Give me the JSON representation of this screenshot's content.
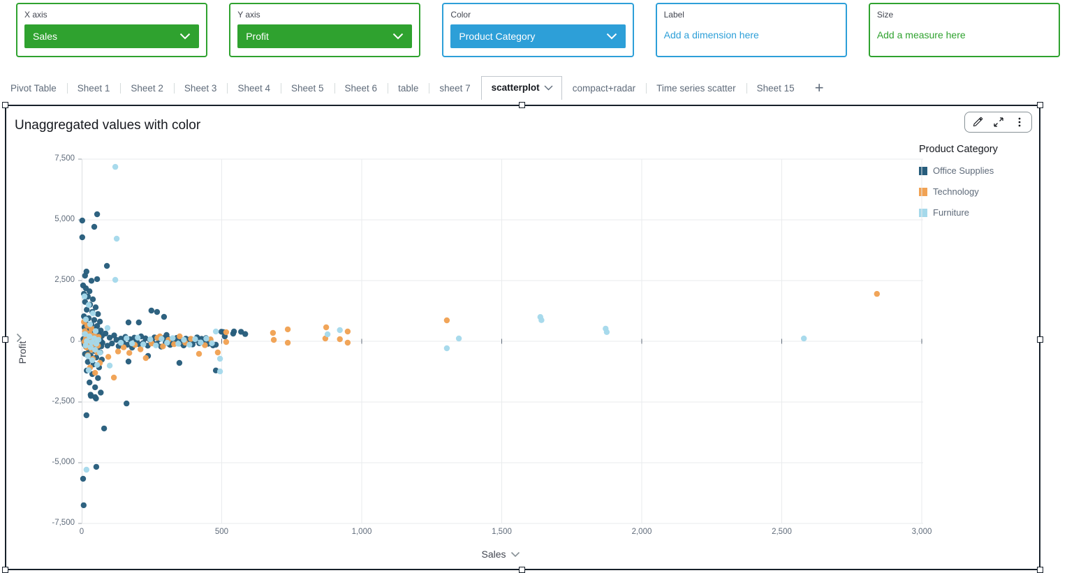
{
  "colors": {
    "measure_green": "#2fa22f",
    "dimension_blue": "#2d9fd8",
    "selection_border": "#17202a",
    "gridline": "#e9ebed",
    "axis_line": "#dcdfe2",
    "tick_text": "#5f6b7a"
  },
  "field_wells": [
    {
      "label": "X axis",
      "type": "dropdown",
      "value": "Sales",
      "color": "green"
    },
    {
      "label": "Y axis",
      "type": "dropdown",
      "value": "Profit",
      "color": "green"
    },
    {
      "label": "Color",
      "type": "dropdown",
      "value": "Product Category",
      "color": "blue"
    },
    {
      "label": "Label",
      "type": "placeholder",
      "value": "Add a dimension here",
      "color": "blue"
    },
    {
      "label": "Size",
      "type": "placeholder",
      "value": "Add a measure here",
      "color": "green"
    }
  ],
  "sheet_tabs": {
    "tabs": [
      {
        "label": "Pivot Table",
        "active": false
      },
      {
        "label": "Sheet 1",
        "active": false
      },
      {
        "label": "Sheet 2",
        "active": false
      },
      {
        "label": "Sheet 3",
        "active": false
      },
      {
        "label": "Sheet 4",
        "active": false
      },
      {
        "label": "Sheet 5",
        "active": false
      },
      {
        "label": "Sheet 6",
        "active": false
      },
      {
        "label": "table",
        "active": false
      },
      {
        "label": "sheet 7",
        "active": false
      },
      {
        "label": "scatterplot",
        "active": true
      },
      {
        "label": "compact+radar",
        "active": false
      },
      {
        "label": "Time series scatter",
        "active": false
      },
      {
        "label": "Sheet 15",
        "active": false
      }
    ],
    "add_label": "+"
  },
  "visual": {
    "title": "Unaggregated values with color",
    "toolbar_icons": [
      "pencil-icon",
      "maximize-icon",
      "kebab-menu-icon"
    ],
    "legend": {
      "title": "Product Category",
      "items": [
        {
          "label": "Office Supplies",
          "color": "#275d7c"
        },
        {
          "label": "Technology",
          "color": "#f1a254"
        },
        {
          "label": "Furniture",
          "color": "#a5d9eb"
        }
      ]
    }
  },
  "chart_data": {
    "type": "scatter",
    "title": "Unaggregated values with color",
    "xlabel": "Sales",
    "ylabel": "Profit",
    "xlim": [
      0,
      3005
    ],
    "ylim": [
      -7500,
      7500
    ],
    "grid": true,
    "legend_position": "right",
    "x_ticks": [
      {
        "v": 0,
        "label": "0"
      },
      {
        "v": 500,
        "label": "500"
      },
      {
        "v": 1000,
        "label": "1,000"
      },
      {
        "v": 1500,
        "label": "1,500"
      },
      {
        "v": 2000,
        "label": "2,000"
      },
      {
        "v": 2500,
        "label": "2,500"
      },
      {
        "v": 3000,
        "label": "3,000"
      }
    ],
    "y_ticks": [
      {
        "v": 7500,
        "label": "7,500"
      },
      {
        "v": 5000,
        "label": "5,000"
      },
      {
        "v": 2500,
        "label": "2,500"
      },
      {
        "v": 0,
        "label": "0"
      },
      {
        "v": -2500,
        "label": "-2,500"
      },
      {
        "v": -5000,
        "label": "-5,000"
      },
      {
        "v": -7500,
        "label": "-7,500"
      }
    ],
    "series": [
      {
        "name": "Office Supplies",
        "color": "#275d7c",
        "points": [
          [
            5,
            2300
          ],
          [
            15,
            2180
          ],
          [
            28,
            2060
          ],
          [
            8,
            1950
          ],
          [
            22,
            1840
          ],
          [
            40,
            1730
          ],
          [
            12,
            1620
          ],
          [
            30,
            1510
          ],
          [
            50,
            1400
          ],
          [
            18,
            1300
          ],
          [
            38,
            1210
          ],
          [
            58,
            1120
          ],
          [
            8,
            1030
          ],
          [
            25,
            950
          ],
          [
            45,
            880
          ],
          [
            65,
            810
          ],
          [
            15,
            745
          ],
          [
            35,
            685
          ],
          [
            55,
            630
          ],
          [
            10,
            578
          ],
          [
            28,
            530
          ],
          [
            48,
            485
          ],
          [
            68,
            443
          ],
          [
            20,
            404
          ],
          [
            40,
            368
          ],
          [
            60,
            335
          ],
          [
            12,
            304
          ],
          [
            32,
            275
          ],
          [
            52,
            248
          ],
          [
            72,
            223
          ],
          [
            16,
            200
          ],
          [
            36,
            179
          ],
          [
            56,
            159
          ],
          [
            24,
            141
          ],
          [
            44,
            124
          ],
          [
            64,
            108
          ],
          [
            6,
            93
          ],
          [
            26,
            79
          ],
          [
            46,
            66
          ],
          [
            66,
            54
          ],
          [
            18,
            43
          ],
          [
            38,
            33
          ],
          [
            58,
            24
          ],
          [
            28,
            15
          ],
          [
            48,
            8
          ],
          [
            9,
            2
          ],
          [
            30,
            -4
          ],
          [
            50,
            -11
          ],
          [
            70,
            -19
          ],
          [
            14,
            -28
          ],
          [
            34,
            -38
          ],
          [
            54,
            -49
          ],
          [
            74,
            -62
          ],
          [
            20,
            -76
          ],
          [
            40,
            -92
          ],
          [
            60,
            -110
          ],
          [
            10,
            -130
          ],
          [
            30,
            -152
          ],
          [
            50,
            -177
          ],
          [
            70,
            -205
          ],
          [
            16,
            -236
          ],
          [
            36,
            -271
          ],
          [
            56,
            -310
          ],
          [
            26,
            -354
          ],
          [
            46,
            -403
          ],
          [
            66,
            -458
          ],
          [
            12,
            -520
          ],
          [
            32,
            -589
          ],
          [
            52,
            -666
          ],
          [
            72,
            -752
          ],
          [
            22,
            -848
          ],
          [
            42,
            -955
          ],
          [
            62,
            -1074
          ],
          [
            18,
            -1206
          ],
          [
            38,
            -1352
          ],
          [
            58,
            -1514
          ],
          [
            28,
            -1694
          ],
          [
            48,
            -1893
          ],
          [
            68,
            -2113
          ],
          [
            33,
            -2250
          ],
          [
            51,
            -2356
          ],
          [
            85,
            320
          ],
          [
            92,
            -180
          ],
          [
            100,
            150
          ],
          [
            108,
            -90
          ],
          [
            116,
            240
          ],
          [
            124,
            60
          ],
          [
            132,
            -200
          ],
          [
            140,
            110
          ],
          [
            148,
            -45
          ],
          [
            156,
            180
          ],
          [
            164,
            -140
          ],
          [
            172,
            90
          ],
          [
            180,
            -260
          ],
          [
            188,
            150
          ],
          [
            196,
            30
          ],
          [
            204,
            -120
          ],
          [
            212,
            200
          ],
          [
            220,
            -70
          ],
          [
            228,
            120
          ],
          [
            236,
            -180
          ],
          [
            244,
            60
          ],
          [
            252,
            -40
          ],
          [
            260,
            160
          ],
          [
            268,
            -110
          ],
          [
            276,
            80
          ],
          [
            284,
            -220
          ],
          [
            292,
            130
          ],
          [
            300,
            -60
          ],
          [
            308,
            100
          ],
          [
            316,
            -150
          ],
          [
            324,
            70
          ],
          [
            332,
            -35
          ],
          [
            340,
            140
          ],
          [
            348,
            -95
          ],
          [
            356,
            55
          ],
          [
            364,
            -170
          ],
          [
            372,
            110
          ],
          [
            380,
            -50
          ],
          [
            388,
            90
          ],
          [
            396,
            -130
          ],
          [
            404,
            45
          ],
          [
            412,
            160
          ],
          [
            420,
            -80
          ],
          [
            428,
            100
          ],
          [
            436,
            -40
          ],
          [
            444,
            130
          ],
          [
            452,
            -100
          ],
          [
            460,
            60
          ],
          [
            167,
            776
          ],
          [
            204,
            776
          ],
          [
            249,
            1264
          ],
          [
            269,
            1207
          ],
          [
            294,
            1006
          ],
          [
            237,
            -603
          ],
          [
            167,
            -833
          ],
          [
            349,
            -891
          ],
          [
            479,
            -1200
          ],
          [
            469,
            -170
          ],
          [
            479,
            -140
          ],
          [
            499,
            395
          ],
          [
            506,
            380
          ],
          [
            511,
            201
          ],
          [
            541,
            316
          ],
          [
            544,
            402
          ],
          [
            569,
            390
          ],
          [
            584,
            300
          ],
          [
            303,
            260
          ],
          [
            312,
            -110
          ],
          [
            55,
            5230
          ],
          [
            2,
            4970
          ],
          [
            45,
            4713
          ],
          [
            2,
            4282
          ],
          [
            90,
            3103
          ],
          [
            17,
            2870
          ],
          [
            12,
            2700
          ],
          [
            55,
            2560
          ],
          [
            35,
            2490
          ],
          [
            160,
            -2560
          ],
          [
            17,
            -3045
          ],
          [
            80,
            -3590
          ],
          [
            52,
            -5170
          ],
          [
            5,
            -5660
          ],
          [
            7,
            -6750
          ],
          [
            32,
            -2200
          ],
          [
            48,
            -2300
          ]
        ]
      },
      {
        "name": "Technology",
        "color": "#f1a254",
        "points": [
          [
            8,
            800
          ],
          [
            20,
            640
          ],
          [
            35,
            520
          ],
          [
            12,
            420
          ],
          [
            28,
            330
          ],
          [
            45,
            250
          ],
          [
            60,
            180
          ],
          [
            15,
            120
          ],
          [
            32,
            70
          ],
          [
            50,
            25
          ],
          [
            10,
            -15
          ],
          [
            25,
            -60
          ],
          [
            42,
            -115
          ],
          [
            58,
            -180
          ],
          [
            18,
            -255
          ],
          [
            36,
            -345
          ],
          [
            55,
            -450
          ],
          [
            22,
            -575
          ],
          [
            40,
            -720
          ],
          [
            65,
            -890
          ],
          [
            30,
            -1080
          ],
          [
            48,
            -1300
          ],
          [
            115,
            -1494
          ],
          [
            95,
            -640
          ],
          [
            130,
            -420
          ],
          [
            150,
            -250
          ],
          [
            170,
            -480
          ],
          [
            190,
            -150
          ],
          [
            210,
            -330
          ],
          [
            229,
            -690
          ],
          [
            250,
            -90
          ],
          [
            270,
            140
          ],
          [
            279,
            201
          ],
          [
            290,
            -210
          ],
          [
            310,
            60
          ],
          [
            330,
            -120
          ],
          [
            350,
            200
          ],
          [
            370,
            -60
          ],
          [
            390,
            100
          ],
          [
            419,
            -517
          ],
          [
            440,
            -160
          ],
          [
            460,
            80
          ],
          [
            486,
            -460
          ],
          [
            516,
            374
          ],
          [
            516,
            -30
          ],
          [
            683,
            345
          ],
          [
            686,
            57
          ],
          [
            736,
            490
          ],
          [
            736,
            -60
          ],
          [
            873,
            575
          ],
          [
            870,
            115
          ],
          [
            922,
            86
          ],
          [
            950,
            402
          ],
          [
            950,
            -57
          ],
          [
            1304,
            862
          ],
          [
            2840,
            1950
          ]
        ]
      },
      {
        "name": "Furniture",
        "color": "#a5d9eb",
        "points": [
          [
            120,
            7180
          ],
          [
            125,
            4224
          ],
          [
            120,
            2530
          ],
          [
            10,
            1850
          ],
          [
            25,
            1500
          ],
          [
            40,
            1150
          ],
          [
            15,
            900
          ],
          [
            30,
            700
          ],
          [
            92,
            546
          ],
          [
            50,
            420
          ],
          [
            12,
            300
          ],
          [
            28,
            200
          ],
          [
            45,
            120
          ],
          [
            60,
            60
          ],
          [
            18,
            10
          ],
          [
            35,
            -40
          ],
          [
            52,
            -100
          ],
          [
            14,
            -170
          ],
          [
            32,
            -250
          ],
          [
            48,
            -350
          ],
          [
            65,
            -470
          ],
          [
            22,
            -610
          ],
          [
            38,
            -780
          ],
          [
            55,
            -970
          ],
          [
            25,
            -1190
          ],
          [
            100,
            -1000
          ],
          [
            140,
            -60
          ],
          [
            160,
            120
          ],
          [
            180,
            -90
          ],
          [
            200,
            150
          ],
          [
            220,
            -130
          ],
          [
            245,
            80
          ],
          [
            265,
            -170
          ],
          [
            285,
            100
          ],
          [
            305,
            -60
          ],
          [
            325,
            130
          ],
          [
            345,
            -100
          ],
          [
            365,
            60
          ],
          [
            385,
            -140
          ],
          [
            405,
            90
          ],
          [
            425,
            -50
          ],
          [
            445,
            110
          ],
          [
            465,
            -80
          ],
          [
            479,
            402
          ],
          [
            494,
            -718
          ],
          [
            494,
            -1240
          ],
          [
            17,
            -5287
          ],
          [
            878,
            287
          ],
          [
            922,
            460
          ],
          [
            1347,
            115
          ],
          [
            1304,
            -287
          ],
          [
            1638,
            1000
          ],
          [
            1642,
            870
          ],
          [
            1871,
            520
          ],
          [
            1875,
            380
          ],
          [
            2579,
            115
          ]
        ]
      }
    ]
  }
}
